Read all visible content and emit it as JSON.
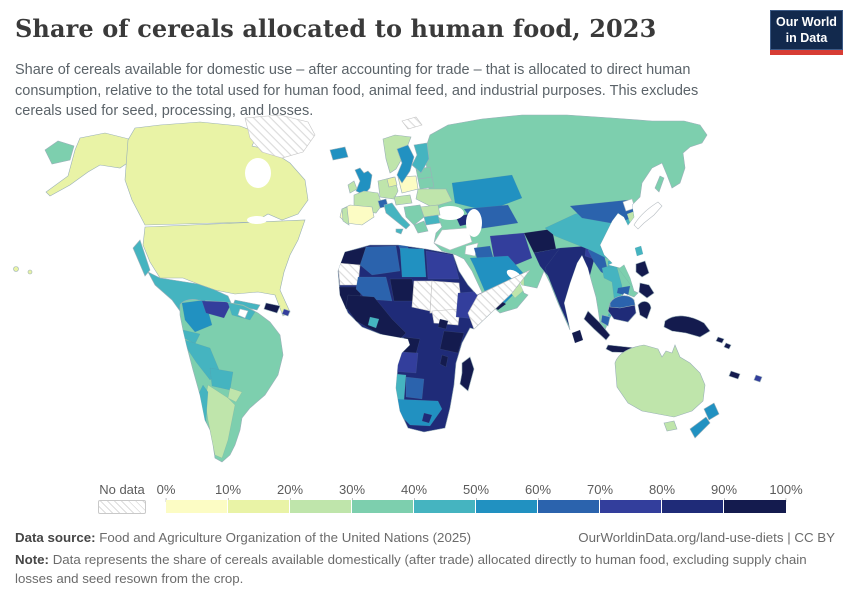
{
  "header": {
    "title": "Share of cereals allocated to human food, 2023",
    "subtitle": "Share of cereals available for domestic use – after accounting for trade – that is allocated to direct human consumption, relative to the total used for human food, animal feed, and industrial purposes. This excludes cereals used for seed, processing, and losses.",
    "logo": {
      "line1": "Our World",
      "line2": "in Data",
      "bg_color": "#12294d",
      "accent_color": "#d73c34"
    }
  },
  "legend": {
    "no_data_label": "No data",
    "tick_labels": [
      "0%",
      "10%",
      "20%",
      "30%",
      "40%",
      "50%",
      "60%",
      "70%",
      "80%",
      "90%",
      "100%"
    ],
    "bins": [
      {
        "range": "0–10%",
        "color": "#fcfcc4"
      },
      {
        "range": "10–20%",
        "color": "#e9f3a6"
      },
      {
        "range": "20–30%",
        "color": "#bfe5ab"
      },
      {
        "range": "30–40%",
        "color": "#7dcfae"
      },
      {
        "range": "40–50%",
        "color": "#45b4c0"
      },
      {
        "range": "50–60%",
        "color": "#2191c1"
      },
      {
        "range": "60–70%",
        "color": "#2b63ad"
      },
      {
        "range": "70–80%",
        "color": "#333e9c"
      },
      {
        "range": "80–90%",
        "color": "#1f2b78"
      },
      {
        "range": "90–100%",
        "color": "#141b4e"
      }
    ]
  },
  "footer": {
    "source_label": "Data source:",
    "source": "Food and Agriculture Organization of the United Nations (2025)",
    "link": "OurWorldinData.org/land-use-diets | CC BY",
    "note_label": "Note:",
    "note": "Data represents the share of cereals available domestically (after trade) allocated directly to human food, excluding supply chain losses and seed resown from the crop."
  },
  "chart_data": {
    "type": "choropleth",
    "title": "Share of cereals allocated to human food",
    "year": "2023",
    "unit": "%",
    "legend_bins": [
      "0–10%",
      "10–20%",
      "20–30%",
      "30–40%",
      "40–50%",
      "50–60%",
      "60–70%",
      "70–80%",
      "80–90%",
      "90–100%"
    ],
    "no_data_regions": [
      "Greenland",
      "Svalbard",
      "Western Sahara",
      "Chad",
      "Sudan",
      "South Sudan",
      "Somalia",
      "Turkey",
      "Syria",
      "Japan",
      "North Korea",
      "Suriname"
    ],
    "regions": {
      "chukotka_russia": {
        "bin": "30–40%",
        "color": "#7dcfae"
      },
      "alaska_usa": {
        "bin": "10–20%",
        "color": "#e9f3a6"
      },
      "canada": {
        "bin": "10–20%",
        "color": "#e9f3a6"
      },
      "usa": {
        "bin": "10–20%",
        "color": "#e9f3a6"
      },
      "hawaii": {
        "bin": "10–20%",
        "color": "#e9f3a6"
      },
      "iceland": {
        "bin": "50–60%",
        "color": "#2191c1"
      },
      "mexico": {
        "bin": "40–50%",
        "color": "#45b4c0"
      },
      "guatemala": {
        "bin": "80–90%",
        "color": "#1f2b78"
      },
      "honduras": {
        "bin": "70–80%",
        "color": "#333e9c"
      },
      "nicaragua": {
        "bin": "50–60%",
        "color": "#2191c1"
      },
      "costa_rica_panama": {
        "bin": "40–50%",
        "color": "#45b4c0"
      },
      "cuba": {
        "bin": "40–50%",
        "color": "#45b4c0"
      },
      "hispaniola": {
        "bin": "90–100%",
        "color": "#141b4e"
      },
      "puerto_rico": {
        "bin": "70–80%",
        "color": "#333e9c"
      },
      "colombia": {
        "bin": "50–60%",
        "color": "#2191c1"
      },
      "venezuela": {
        "bin": "70–80%",
        "color": "#333e9c"
      },
      "guyana": {
        "bin": "40–50%",
        "color": "#45b4c0"
      },
      "ecuador": {
        "bin": "40–50%",
        "color": "#45b4c0"
      },
      "peru": {
        "bin": "40–50%",
        "color": "#45b4c0"
      },
      "brazil": {
        "bin": "30–40%",
        "color": "#7dcfae"
      },
      "bolivia": {
        "bin": "40–50%",
        "color": "#45b4c0"
      },
      "paraguay": {
        "bin": "20–30%",
        "color": "#bfe5ab"
      },
      "argentina": {
        "bin": "20–30%",
        "color": "#bfe5ab"
      },
      "chile": {
        "bin": "40–50%",
        "color": "#45b4c0"
      },
      "uk": {
        "bin": "50–60%",
        "color": "#2191c1"
      },
      "ireland": {
        "bin": "20–30%",
        "color": "#bfe5ab"
      },
      "norway": {
        "bin": "20–30%",
        "color": "#bfe5ab"
      },
      "sweden": {
        "bin": "50–60%",
        "color": "#2191c1"
      },
      "finland": {
        "bin": "40–50%",
        "color": "#45b4c0"
      },
      "denmark": {
        "bin": "10–20%",
        "color": "#e9f3a6"
      },
      "baltics": {
        "bin": "30–40%",
        "color": "#7dcfae"
      },
      "belarus": {
        "bin": "30–40%",
        "color": "#7dcfae"
      },
      "germany": {
        "bin": "20–30%",
        "color": "#bfe5ab"
      },
      "poland": {
        "bin": "0–10%",
        "color": "#fcfcc4"
      },
      "france": {
        "bin": "20–30%",
        "color": "#bfe5ab"
      },
      "spain": {
        "bin": "0–10%",
        "color": "#fcfcc4"
      },
      "portugal": {
        "bin": "20–30%",
        "color": "#bfe5ab"
      },
      "italy": {
        "bin": "40–50%",
        "color": "#45b4c0"
      },
      "sicily": {
        "bin": "40–50%",
        "color": "#45b4c0"
      },
      "switzerland": {
        "bin": "60–70%",
        "color": "#2b63ad"
      },
      "austria_hungary": {
        "bin": "20–30%",
        "color": "#bfe5ab"
      },
      "balkans": {
        "bin": "30–40%",
        "color": "#7dcfae"
      },
      "greece": {
        "bin": "30–40%",
        "color": "#7dcfae"
      },
      "romania": {
        "bin": "20–30%",
        "color": "#bfe5ab"
      },
      "bulgaria": {
        "bin": "40–50%",
        "color": "#45b4c0"
      },
      "ukraine": {
        "bin": "20–30%",
        "color": "#bfe5ab"
      },
      "russia": {
        "bin": "30–40%",
        "color": "#7dcfae"
      },
      "sakhalin_russia": {
        "bin": "30–40%",
        "color": "#7dcfae"
      },
      "kazakhstan": {
        "bin": "50–60%",
        "color": "#2191c1"
      },
      "central_asia": {
        "bin": "60–70%",
        "color": "#2b63ad"
      },
      "caucasus": {
        "bin": "80–90%",
        "color": "#1f2b78"
      },
      "iraq": {
        "bin": "60–70%",
        "color": "#2b63ad"
      },
      "iran": {
        "bin": "70–80%",
        "color": "#333e9c"
      },
      "saudi_arabia": {
        "bin": "50–60%",
        "color": "#2191c1"
      },
      "yemen": {
        "bin": "90–100%",
        "color": "#141b4e"
      },
      "oman": {
        "bin": "20–30%",
        "color": "#bfe5ab"
      },
      "afghanistan": {
        "bin": "90–100%",
        "color": "#141b4e"
      },
      "pakistan": {
        "bin": "80–90%",
        "color": "#1f2b78"
      },
      "india": {
        "bin": "80–90%",
        "color": "#1f2b78"
      },
      "bangladesh": {
        "bin": "70–80%",
        "color": "#333e9c"
      },
      "sri_lanka": {
        "bin": "90–100%",
        "color": "#141b4e"
      },
      "myanmar": {
        "bin": "60–70%",
        "color": "#2b63ad"
      },
      "thailand": {
        "bin": "40–50%",
        "color": "#45b4c0"
      },
      "vietnam_laos": {
        "bin": "30–40%",
        "color": "#7dcfae"
      },
      "cambodia": {
        "bin": "60–70%",
        "color": "#2b63ad"
      },
      "china": {
        "bin": "40–50%",
        "color": "#45b4c0"
      },
      "mongolia": {
        "bin": "60–70%",
        "color": "#2b63ad"
      },
      "south_korea": {
        "bin": "20–30%",
        "color": "#bfe5ab"
      },
      "taiwan": {
        "bin": "40–50%",
        "color": "#45b4c0"
      },
      "hainan_china": {
        "bin": "40–50%",
        "color": "#45b4c0"
      },
      "philippines": {
        "bin": "90–100%",
        "color": "#141b4e"
      },
      "malaysia": {
        "bin": "60–70%",
        "color": "#2b63ad"
      },
      "borneo_indonesia": {
        "bin": "80–90%",
        "color": "#1f2b78"
      },
      "sumatra_indonesia": {
        "bin": "90–100%",
        "color": "#141b4e"
      },
      "java_indonesia": {
        "bin": "90–100%",
        "color": "#141b4e"
      },
      "lesser_sunda": {
        "bin": "40–50%",
        "color": "#45b4c0"
      },
      "sulawesi_indonesia": {
        "bin": "90–100%",
        "color": "#141b4e"
      },
      "timor": {
        "bin": "90–100%",
        "color": "#141b4e"
      },
      "new_guinea": {
        "bin": "90–100%",
        "color": "#141b4e"
      },
      "solomon_islands": {
        "bin": "90–100%",
        "color": "#141b4e"
      },
      "new_caledonia": {
        "bin": "90–100%",
        "color": "#141b4e"
      },
      "fiji": {
        "bin": "70–80%",
        "color": "#333e9c"
      },
      "australia": {
        "bin": "20–30%",
        "color": "#bfe5ab"
      },
      "tasmania": {
        "bin": "20–30%",
        "color": "#bfe5ab"
      },
      "new_zealand": {
        "bin": "50–60%",
        "color": "#2191c1"
      },
      "morocco": {
        "bin": "90–100%",
        "color": "#141b4e"
      },
      "algeria": {
        "bin": "60–70%",
        "color": "#2b63ad"
      },
      "tunisia": {
        "bin": "60–70%",
        "color": "#2b63ad"
      },
      "libya": {
        "bin": "50–60%",
        "color": "#2191c1"
      },
      "egypt": {
        "bin": "70–80%",
        "color": "#333e9c"
      },
      "mauritania": {
        "bin": "90–100%",
        "color": "#141b4e"
      },
      "mali": {
        "bin": "60–70%",
        "color": "#2b63ad"
      },
      "niger": {
        "bin": "90–100%",
        "color": "#141b4e"
      },
      "west_africa": {
        "bin": "90–100%",
        "color": "#141b4e"
      },
      "ivory_coast": {
        "bin": "40–50%",
        "color": "#45b4c0"
      },
      "nigeria_drc": {
        "bin": "80–90%",
        "color": "#1f2b78"
      },
      "cameroon_congo": {
        "bin": "90–100%",
        "color": "#141b4e"
      },
      "ethiopia": {
        "bin": "70–80%",
        "color": "#333e9c"
      },
      "uganda": {
        "bin": "90–100%",
        "color": "#141b4e"
      },
      "tanzania": {
        "bin": "90–100%",
        "color": "#141b4e"
      },
      "malawi": {
        "bin": "90–100%",
        "color": "#141b4e"
      },
      "angola": {
        "bin": "70–80%",
        "color": "#333e9c"
      },
      "namibia": {
        "bin": "40–50%",
        "color": "#45b4c0"
      },
      "botswana": {
        "bin": "60–70%",
        "color": "#2b63ad"
      },
      "south_africa": {
        "bin": "50–60%",
        "color": "#2191c1"
      },
      "lesotho": {
        "bin": "80–90%",
        "color": "#1f2b78"
      },
      "madagascar": {
        "bin": "90–100%",
        "color": "#141b4e"
      }
    }
  }
}
